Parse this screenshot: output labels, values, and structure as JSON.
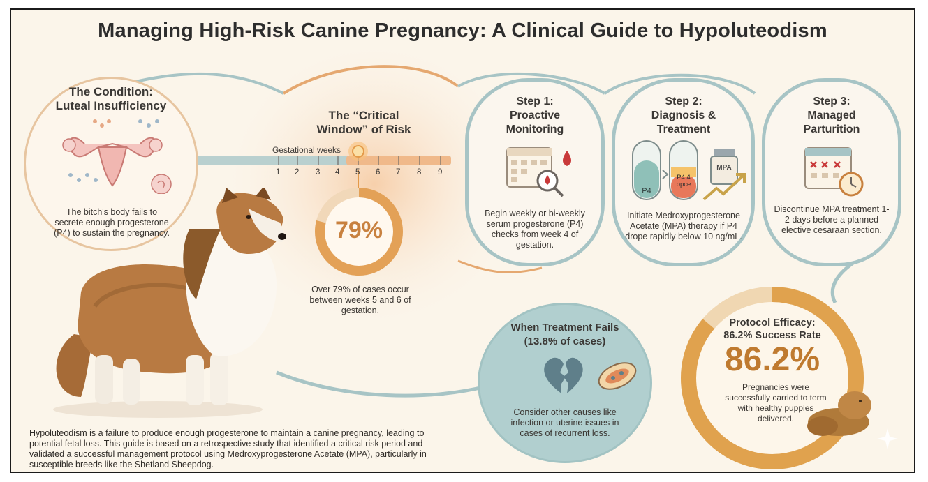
{
  "title": "Managing High-Risk Canine Pregnancy: A Clinical Guide to Hypoluteodism",
  "condition": {
    "heading_line1": "The Condition:",
    "heading_line2": "Luteal Insufficiency",
    "text": "The bitch's body fails to secrete enough progesterone (P4) to sustain the pregnancy."
  },
  "critical_window": {
    "heading_line1": "The “Critical",
    "heading_line2": "Window” of Risk",
    "timeline_label": "Gestational weeks",
    "weeks": [
      "1",
      "2",
      "3",
      "4",
      "5",
      "6",
      "7",
      "8",
      "9"
    ],
    "highlight_week": 5,
    "percent_label": "79%",
    "percent_value": 0.79,
    "text": "Over 79% of cases occur between weeks 5 and 6 of gestation."
  },
  "step1": {
    "heading_line1": "Step 1:",
    "heading_line2": "Proactive",
    "heading_line3": "Monitoring",
    "text": "Begin weekly or bi-weekly serum progesterone (P4) checks from week 4 of gestation."
  },
  "step2": {
    "heading_line1": "Step 2:",
    "heading_line2": "Diagnosis &",
    "heading_line3": "Treatment",
    "tube1_label": "P4",
    "tube2_label_line1": "P4.4",
    "tube2_label_line2": "opce",
    "vial_label": "MPA",
    "text": "Initiate Medroxyprogesterone Acetate (MPA) therapy if P4 drope rapidly below 10 ng/mL."
  },
  "step3": {
    "heading_line1": "Step 3:",
    "heading_line2": "Managed",
    "heading_line3": "Parturition",
    "text": "Discontinue MPA treatment 1-2 days before a planned elective cesaraan section."
  },
  "fails": {
    "heading_line1": "When Treatment Fails",
    "heading_line2": "(13.8% of cases)",
    "text": "Consider other causes like infection or uterine issues in cases of recurrent loss."
  },
  "efficacy": {
    "heading_line1": "Protocol Efficacy:",
    "heading_line2": "86.2% Success Rate",
    "percent_label": "86.2%",
    "percent_value": 0.862,
    "text": "Pregnancies were successfully carried to term with healthy puppies delivered."
  },
  "footer": "Hypoluteodism is a failure to produce enough progesterone to maintain a canine pregnancy, leading to potential fetal loss. This guide is based on a retrospective study that identified a critical risk period and validated a successful management protocol using Medroxyprogesterone Acetate (MPA), particularly in susceptible breeds like the Shetland Sheepdog.",
  "colors": {
    "teal": "#7fa9ad",
    "orange": "#e3a157",
    "gold": "#d9a054",
    "red": "#c93a3a",
    "background": "#fbf5ea"
  }
}
